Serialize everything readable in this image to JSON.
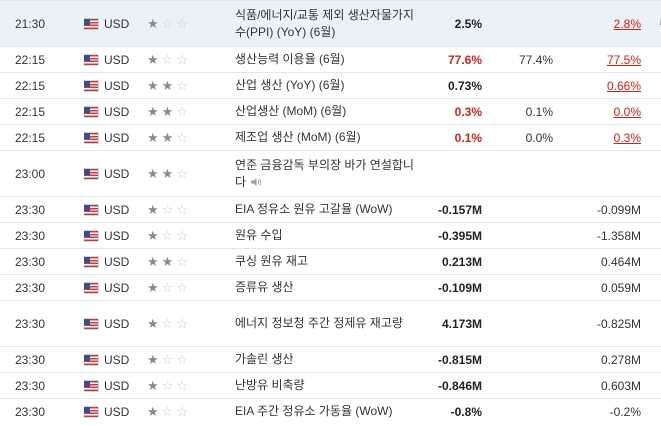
{
  "rows": [
    {
      "time": "21:30",
      "currency": "USD",
      "importance": 1,
      "event": "식품/에너지/교통 제외 생산자물가지수(PPI) (YoY) (6월)",
      "actual": "2.5%",
      "actual_style": "bold",
      "forecast": "",
      "previous": "2.8%",
      "previous_style": "red-underline",
      "highlight": true,
      "alert_icon": "bell-plus-icon",
      "tall": true
    },
    {
      "time": "22:15",
      "currency": "USD",
      "importance": 1,
      "event": "생산능력 이용율 (6월)",
      "actual": "77.6%",
      "actual_style": "negative",
      "forecast": "77.4%",
      "previous": "77.5%",
      "previous_style": "red-underline"
    },
    {
      "time": "22:15",
      "currency": "USD",
      "importance": 2,
      "event": "산업 생산 (YoY) (6월)",
      "actual": "0.73%",
      "actual_style": "bold",
      "forecast": "",
      "previous": "0.66%",
      "previous_style": "red-underline"
    },
    {
      "time": "22:15",
      "currency": "USD",
      "importance": 2,
      "event": "산업생산 (MoM) (6월)",
      "actual": "0.3%",
      "actual_style": "negative",
      "forecast": "0.1%",
      "previous": "0.0%",
      "previous_style": "red-underline"
    },
    {
      "time": "22:15",
      "currency": "USD",
      "importance": 2,
      "event": "제조업 생산 (MoM) (6월)",
      "actual": "0.1%",
      "actual_style": "negative",
      "forecast": "0.0%",
      "previous": "0.3%",
      "previous_style": "red-underline"
    },
    {
      "time": "23:00",
      "currency": "USD",
      "importance": 2,
      "event": "연준 금융감독 부의장 바가 연설합니다",
      "actual": "",
      "forecast": "",
      "previous": "",
      "speech_icon": "speaker-icon",
      "tall": true
    },
    {
      "time": "23:30",
      "currency": "USD",
      "importance": 1,
      "event": "EIA 정유소 원유 고갈율 (WoW)",
      "actual": "-0.157M",
      "actual_style": "bold",
      "forecast": "",
      "previous": "-0.099M"
    },
    {
      "time": "23:30",
      "currency": "USD",
      "importance": 1,
      "event": "원유 수입",
      "actual": "-0.395M",
      "actual_style": "bold",
      "forecast": "",
      "previous": "-1.358M"
    },
    {
      "time": "23:30",
      "currency": "USD",
      "importance": 2,
      "event": "쿠싱 원유 재고",
      "actual": "0.213M",
      "actual_style": "bold",
      "forecast": "",
      "previous": "0.464M"
    },
    {
      "time": "23:30",
      "currency": "USD",
      "importance": 1,
      "event": "증류유 생산",
      "actual": "-0.109M",
      "actual_style": "bold",
      "forecast": "",
      "previous": "0.059M"
    },
    {
      "time": "23:30",
      "currency": "USD",
      "importance": 1,
      "event": "에너지 정보청 주간 정제유 재고량",
      "actual": "4.173M",
      "actual_style": "bold",
      "forecast": "",
      "previous": "-0.825M",
      "tall": true
    },
    {
      "time": "23:30",
      "currency": "USD",
      "importance": 1,
      "event": "가솔린 생산",
      "actual": "-0.815M",
      "actual_style": "bold",
      "forecast": "",
      "previous": "0.278M"
    },
    {
      "time": "23:30",
      "currency": "USD",
      "importance": 1,
      "event": "난방유 비축량",
      "actual": "-0.846M",
      "actual_style": "bold",
      "forecast": "",
      "previous": "0.603M"
    },
    {
      "time": "23:30",
      "currency": "USD",
      "importance": 1,
      "event": "EIA 주간 정유소 가동율 (WoW)",
      "actual": "-0.8%",
      "actual_style": "bold",
      "forecast": "",
      "previous": "-0.2%"
    }
  ],
  "colors": {
    "negative": "#d91e18",
    "star_on": "#848b93",
    "star_off": "#c8ccd1",
    "highlight_row": "#eaf1f9",
    "border": "#e3e6ea"
  }
}
